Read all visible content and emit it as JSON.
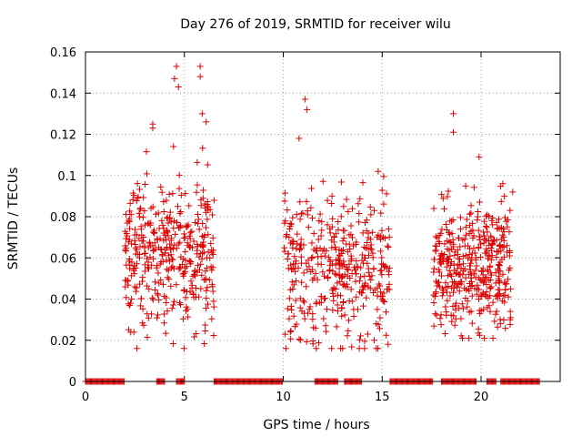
{
  "chart_data": {
    "type": "scatter",
    "title": "Day 276 of 2019, SRMTID for receiver wilu",
    "xlabel": "GPS time / hours",
    "ylabel": "SRMTID / TECUs",
    "xlim": [
      0,
      24
    ],
    "ylim": [
      0,
      0.16
    ],
    "xticks": [
      0,
      5,
      10,
      15,
      20
    ],
    "yticks": [
      0,
      0.02,
      0.04,
      0.06,
      0.08,
      0.1,
      0.12,
      0.14,
      0.16
    ],
    "x_tick_labels": [
      "0",
      "5",
      "10",
      "15",
      "20"
    ],
    "y_tick_labels": [
      "0",
      "0.02",
      "0.04",
      "0.06",
      "0.08",
      "0.1",
      "0.12",
      "0.14",
      "0.16"
    ],
    "grid": true,
    "marker": "+",
    "color": "#dd0000",
    "point_count_estimate": 1500,
    "zero_baseline_segments": [
      [
        0.0,
        2.0
      ],
      [
        3.6,
        4.0
      ],
      [
        4.6,
        5.0
      ],
      [
        6.5,
        10.0
      ],
      [
        11.6,
        12.8
      ],
      [
        13.1,
        14.0
      ],
      [
        15.4,
        17.6
      ],
      [
        18.0,
        19.8
      ],
      [
        20.3,
        20.8
      ],
      [
        21.0,
        23.0
      ]
    ],
    "clusters": [
      {
        "x_range": [
          2.0,
          6.5
        ],
        "y_mean": 0.062,
        "y_spread": 0.018,
        "y_range": [
          0.016,
          0.153
        ]
      },
      {
        "x_range": [
          10.0,
          15.4
        ],
        "y_mean": 0.055,
        "y_spread": 0.017,
        "y_range": [
          0.016,
          0.137
        ]
      },
      {
        "x_range": [
          17.6,
          21.5
        ],
        "y_mean": 0.055,
        "y_spread": 0.016,
        "y_range": [
          0.021,
          0.13
        ]
      }
    ],
    "notable_points": [
      {
        "x": 4.6,
        "y": 0.153
      },
      {
        "x": 5.8,
        "y": 0.153
      },
      {
        "x": 4.5,
        "y": 0.147
      },
      {
        "x": 5.8,
        "y": 0.148
      },
      {
        "x": 4.7,
        "y": 0.143
      },
      {
        "x": 11.1,
        "y": 0.137
      },
      {
        "x": 11.2,
        "y": 0.132
      },
      {
        "x": 18.6,
        "y": 0.13
      },
      {
        "x": 3.4,
        "y": 0.125
      },
      {
        "x": 3.4,
        "y": 0.123
      },
      {
        "x": 18.6,
        "y": 0.121
      },
      {
        "x": 10.8,
        "y": 0.118
      },
      {
        "x": 6.1,
        "y": 0.126
      },
      {
        "x": 5.9,
        "y": 0.13
      },
      {
        "x": 19.9,
        "y": 0.109
      },
      {
        "x": 14.8,
        "y": 0.102
      },
      {
        "x": 21.1,
        "y": 0.096
      },
      {
        "x": 21.6,
        "y": 0.092
      },
      {
        "x": 2.6,
        "y": 0.016
      },
      {
        "x": 12.9,
        "y": 0.016
      },
      {
        "x": 14.6,
        "y": 0.02
      },
      {
        "x": 20.6,
        "y": 0.021
      },
      {
        "x": 15.3,
        "y": 0.018
      },
      {
        "x": 21.5,
        "y": 0.031
      }
    ]
  }
}
